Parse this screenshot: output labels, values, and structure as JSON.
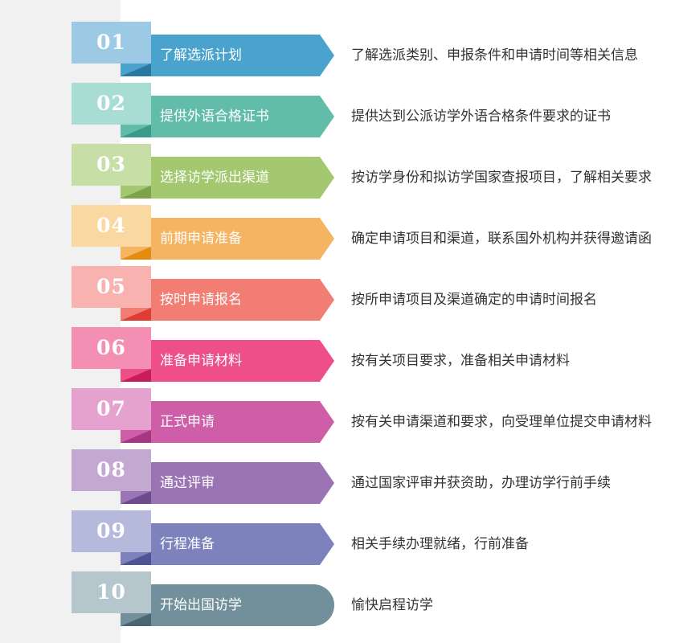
{
  "steps": [
    {
      "number": "01",
      "title": "了解选派计划",
      "description": "了解选派类别、申报条件和申请时间等相关信息",
      "colors": {
        "light": "#9cc9e4",
        "main": "#4aa3cc",
        "dark": "#2a78a0"
      },
      "shape": "arrow"
    },
    {
      "number": "02",
      "title": "提供外语合格证书",
      "description": "提供达到公派访学外语合格条件要求的证书",
      "colors": {
        "light": "#a8ddd3",
        "main": "#62bcaa",
        "dark": "#3d9a88"
      },
      "shape": "arrow"
    },
    {
      "number": "03",
      "title": "选择访学派出渠道",
      "description": "按访学身份和拟访学国家查报项目，了解相关要求",
      "colors": {
        "light": "#c7dfa6",
        "main": "#a3c86f",
        "dark": "#7ea34a"
      },
      "shape": "arrow"
    },
    {
      "number": "04",
      "title": "前期申请准备",
      "description": "确定申请项目和渠道，联系国外机构并获得邀请函",
      "colors": {
        "light": "#f9d8a2",
        "main": "#f5b461",
        "dark": "#e48b10"
      },
      "shape": "arrow"
    },
    {
      "number": "05",
      "title": "按时申请报名",
      "description": "按所申请项目及渠道确定的申请时间报名",
      "colors": {
        "light": "#f8b3b0",
        "main": "#f27d73",
        "dark": "#de3c35"
      },
      "shape": "arrow"
    },
    {
      "number": "06",
      "title": "准备申请材料",
      "description": "按有关项目要求，准备相关申请材料",
      "colors": {
        "light": "#f48fb3",
        "main": "#ef4f88",
        "dark": "#c81d5b"
      },
      "shape": "arrow"
    },
    {
      "number": "07",
      "title": "正式申请",
      "description": "按有关申请渠道和要求，向受理单位提交申请材料",
      "colors": {
        "light": "#e6a2cf",
        "main": "#cf5ea8",
        "dark": "#a53682"
      },
      "shape": "arrow"
    },
    {
      "number": "08",
      "title": "通过评审",
      "description": "通过国家评审并获资助，办理访学行前手续",
      "colors": {
        "light": "#c3a9d1",
        "main": "#9a74b3",
        "dark": "#6f4a8c"
      },
      "shape": "arrow"
    },
    {
      "number": "09",
      "title": "行程准备",
      "description": "相关手续办理就绪，行前准备",
      "colors": {
        "light": "#b5b9dc",
        "main": "#7d82bd",
        "dark": "#4f5497"
      },
      "shape": "arrow"
    },
    {
      "number": "10",
      "title": "开始出国访学",
      "description": "愉快启程访学",
      "colors": {
        "light": "#b6c6cd",
        "main": "#728f9c",
        "dark": "#4b6673"
      },
      "shape": "round"
    }
  ]
}
